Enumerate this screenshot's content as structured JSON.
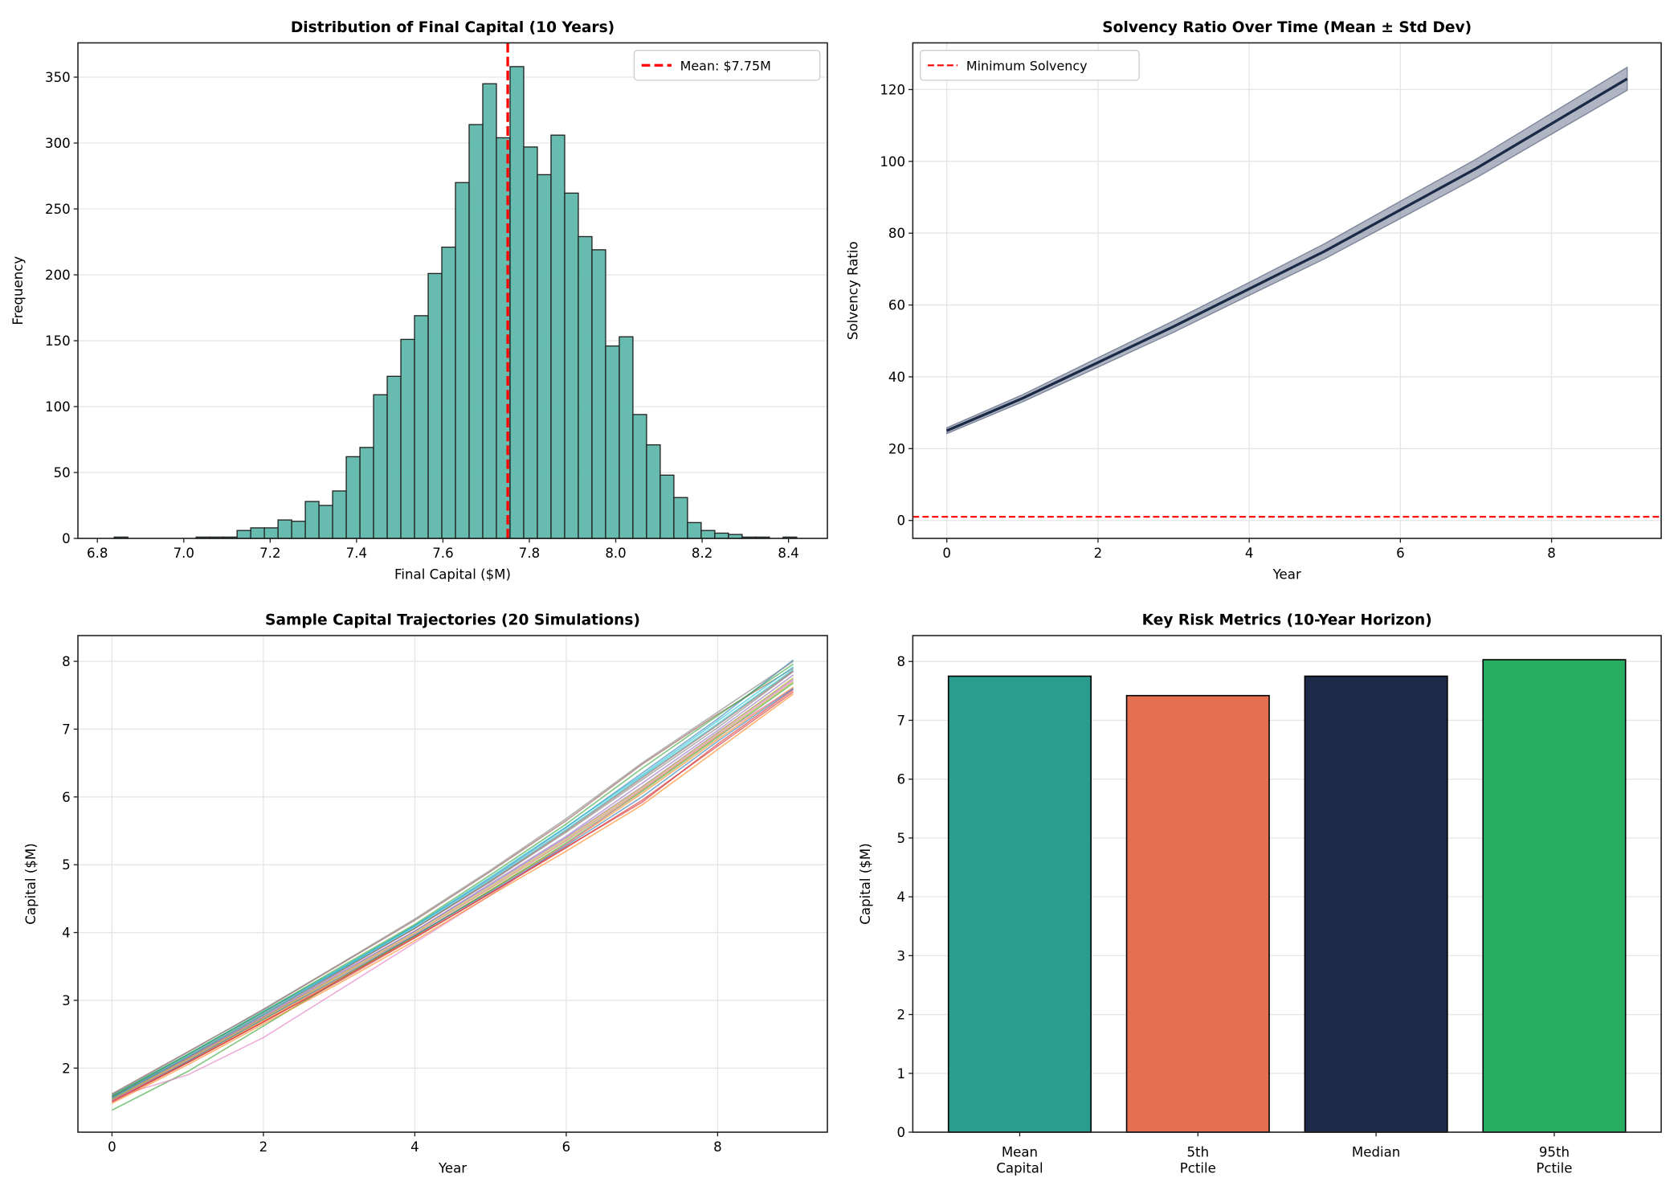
{
  "chart_data": [
    {
      "type": "bar",
      "subtype": "histogram",
      "title": "Distribution of Final Capital (10 Years)",
      "xlabel": "Final Capital ($M)",
      "ylabel": "Frequency",
      "xlim": [
        6.755,
        8.49
      ],
      "ylim": [
        0,
        376
      ],
      "xticks": [
        "6.8",
        "7.0",
        "7.2",
        "7.4",
        "7.6",
        "7.8",
        "8.0",
        "8.2",
        "8.4"
      ],
      "yticks": [
        "0",
        "50",
        "100",
        "150",
        "200",
        "250",
        "300",
        "350"
      ],
      "bin_start": 6.839,
      "bin_width": 0.0316,
      "counts": [
        1,
        0,
        0,
        0,
        0,
        0,
        1,
        1,
        1,
        6,
        8,
        8,
        14,
        13,
        28,
        25,
        36,
        62,
        69,
        109,
        123,
        151,
        169,
        201,
        221,
        270,
        314,
        345,
        304,
        358,
        297,
        276,
        306,
        262,
        229,
        219,
        146,
        153,
        94,
        71,
        48,
        31,
        12,
        6,
        4,
        3,
        1,
        1,
        0,
        1
      ],
      "bar_color": "#5fb8ab",
      "mean_line": {
        "value": 7.75,
        "label": "Mean: $7.75M",
        "color": "#ff0000"
      },
      "legend": "top-right",
      "grid": "y"
    },
    {
      "type": "line",
      "title": "Solvency Ratio Over Time (Mean ± Std Dev)",
      "xlabel": "Year",
      "ylabel": "Solvency Ratio",
      "xlim": [
        -0.45,
        9.45
      ],
      "ylim": [
        -5,
        133
      ],
      "xticks": [
        "0",
        "2",
        "4",
        "6",
        "8"
      ],
      "yticks": [
        "0",
        "20",
        "40",
        "60",
        "80",
        "100",
        "120"
      ],
      "x": [
        0,
        1,
        2,
        3,
        4,
        5,
        6,
        7,
        8,
        9
      ],
      "mean": [
        25,
        34,
        44,
        54,
        64.5,
        75,
        86.5,
        98,
        110.5,
        123
      ],
      "std": [
        0.8,
        1.0,
        1.3,
        1.6,
        1.8,
        2.1,
        2.4,
        2.6,
        2.9,
        3.2
      ],
      "line_color": "#1b2a47",
      "band_color": "#7a8499",
      "min_line": {
        "value": 1,
        "label": "Minimum Solvency",
        "color": "#ff0000"
      },
      "legend": "top-left",
      "grid": "both"
    },
    {
      "type": "line",
      "title": "Sample Capital Trajectories (20 Simulations)",
      "xlabel": "Year",
      "ylabel": "Capital ($M)",
      "xlim": [
        -0.45,
        9.45
      ],
      "ylim": [
        1.055,
        8.38
      ],
      "xticks": [
        "0",
        "2",
        "4",
        "6",
        "8"
      ],
      "yticks": [
        "2",
        "3",
        "4",
        "5",
        "6",
        "7",
        "8"
      ],
      "x": [
        0,
        1,
        2,
        3,
        4,
        5,
        6,
        7,
        8,
        9
      ],
      "series": [
        {
          "values": [
            1.58,
            2.2,
            2.82,
            3.45,
            4.1,
            4.8,
            5.55,
            6.35,
            7.15,
            8.02
          ]
        },
        {
          "values": [
            1.52,
            2.1,
            2.7,
            3.32,
            3.95,
            4.62,
            5.3,
            6.05,
            6.85,
            7.62
          ]
        },
        {
          "values": [
            1.38,
            1.95,
            2.62,
            3.3,
            3.95,
            4.62,
            5.32,
            6.08,
            6.88,
            7.68
          ]
        },
        {
          "values": [
            1.5,
            2.08,
            2.68,
            3.28,
            3.92,
            4.58,
            5.25,
            5.95,
            6.75,
            7.55
          ]
        },
        {
          "values": [
            1.55,
            2.15,
            2.76,
            3.4,
            4.02,
            4.72,
            5.42,
            6.2,
            6.98,
            7.8
          ]
        },
        {
          "values": [
            1.62,
            2.24,
            2.86,
            3.52,
            4.18,
            4.9,
            5.65,
            6.48,
            7.22,
            7.9
          ]
        },
        {
          "values": [
            1.56,
            1.9,
            2.45,
            3.15,
            3.85,
            4.55,
            5.3,
            6.1,
            6.9,
            7.6
          ]
        },
        {
          "values": [
            1.57,
            2.18,
            2.8,
            3.43,
            4.06,
            4.75,
            5.48,
            6.25,
            7.02,
            7.85
          ]
        },
        {
          "values": [
            1.54,
            2.12,
            2.72,
            3.35,
            3.98,
            4.65,
            5.35,
            6.1,
            6.9,
            7.7
          ]
        },
        {
          "values": [
            1.6,
            2.2,
            2.84,
            3.46,
            4.1,
            4.82,
            5.56,
            6.32,
            7.12,
            7.92
          ]
        },
        {
          "values": [
            1.53,
            2.1,
            2.72,
            3.33,
            3.96,
            4.6,
            5.28,
            6.0,
            6.82,
            7.6
          ]
        },
        {
          "values": [
            1.48,
            2.05,
            2.65,
            3.25,
            3.88,
            4.55,
            5.2,
            5.88,
            6.7,
            7.52
          ]
        },
        {
          "values": [
            1.59,
            2.2,
            2.83,
            3.48,
            4.12,
            4.85,
            5.6,
            6.42,
            7.2,
            7.96
          ]
        },
        {
          "values": [
            1.51,
            2.08,
            2.68,
            3.3,
            3.93,
            4.58,
            5.26,
            5.92,
            6.78,
            7.58
          ]
        },
        {
          "values": [
            1.55,
            2.14,
            2.75,
            3.38,
            4.02,
            4.7,
            5.4,
            6.15,
            6.95,
            7.74
          ]
        },
        {
          "values": [
            1.57,
            2.16,
            2.78,
            3.42,
            4.06,
            4.76,
            5.5,
            6.28,
            7.06,
            7.86
          ]
        },
        {
          "values": [
            1.52,
            2.12,
            2.74,
            3.36,
            3.98,
            4.66,
            5.36,
            6.12,
            6.92,
            7.72
          ]
        },
        {
          "values": [
            1.61,
            2.23,
            2.87,
            3.53,
            4.2,
            4.92,
            5.68,
            6.5,
            7.25,
            8.0
          ]
        },
        {
          "values": [
            1.54,
            2.13,
            2.74,
            3.37,
            4.0,
            4.68,
            5.38,
            6.14,
            6.94,
            7.76
          ]
        },
        {
          "values": [
            1.56,
            2.17,
            2.79,
            3.44,
            4.08,
            4.78,
            5.52,
            6.3,
            7.08,
            7.88
          ]
        }
      ],
      "palette": [
        "#1f77b4",
        "#ff7f0e",
        "#2ca02c",
        "#d62728",
        "#9467bd",
        "#8c564b",
        "#e377c2",
        "#7f7f7f",
        "#bcbd22",
        "#17becf"
      ],
      "grid": "both"
    },
    {
      "type": "bar",
      "title": "Key Risk Metrics (10-Year Horizon)",
      "xlabel": "",
      "ylabel": "Capital ($M)",
      "ylim": [
        0,
        8.44
      ],
      "yticks": [
        "0",
        "1",
        "2",
        "3",
        "4",
        "5",
        "6",
        "7",
        "8"
      ],
      "categories": [
        [
          "Mean",
          "Capital"
        ],
        [
          "5th",
          "Pctile"
        ],
        [
          "Median",
          ""
        ],
        [
          "95th",
          "Pctile"
        ]
      ],
      "values": [
        7.75,
        7.42,
        7.75,
        8.03
      ],
      "colors": [
        "#2a9d8f",
        "#e76f51",
        "#1d2a4a",
        "#27ae60"
      ],
      "grid": "y"
    }
  ]
}
